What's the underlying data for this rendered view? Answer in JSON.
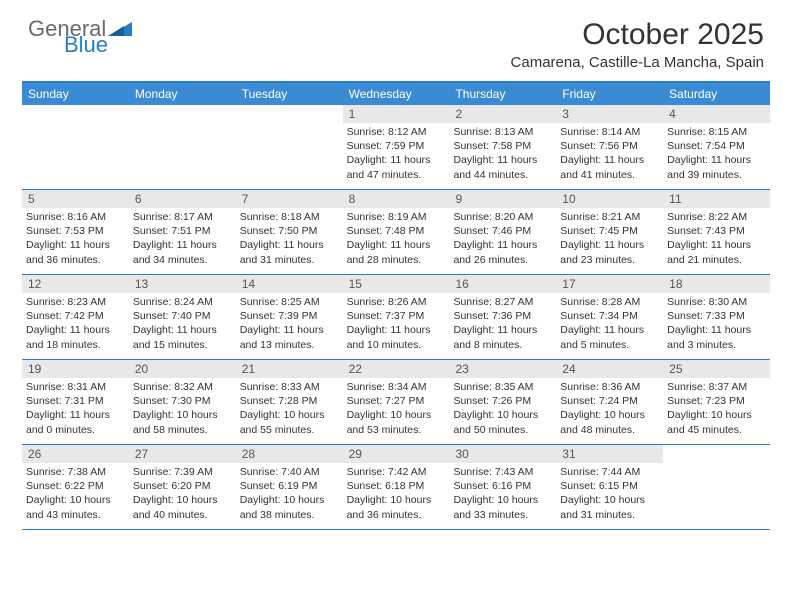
{
  "logo": {
    "text1": "General",
    "text2": "Blue"
  },
  "title": "October 2025",
  "location": "Camarena, Castille-La Mancha, Spain",
  "colors": {
    "header_bg": "#3b8bd4",
    "header_text": "#ffffff",
    "border": "#2a7dc0",
    "daynum_bg": "#e8e8e8",
    "body_text": "#333333",
    "logo_gray": "#6a6a6a",
    "logo_blue": "#2a7dc0"
  },
  "day_headers": [
    "Sunday",
    "Monday",
    "Tuesday",
    "Wednesday",
    "Thursday",
    "Friday",
    "Saturday"
  ],
  "weeks": [
    [
      {
        "n": "",
        "sr": "",
        "ss": "",
        "dl": ""
      },
      {
        "n": "",
        "sr": "",
        "ss": "",
        "dl": ""
      },
      {
        "n": "",
        "sr": "",
        "ss": "",
        "dl": ""
      },
      {
        "n": "1",
        "sr": "Sunrise: 8:12 AM",
        "ss": "Sunset: 7:59 PM",
        "dl": "Daylight: 11 hours and 47 minutes."
      },
      {
        "n": "2",
        "sr": "Sunrise: 8:13 AM",
        "ss": "Sunset: 7:58 PM",
        "dl": "Daylight: 11 hours and 44 minutes."
      },
      {
        "n": "3",
        "sr": "Sunrise: 8:14 AM",
        "ss": "Sunset: 7:56 PM",
        "dl": "Daylight: 11 hours and 41 minutes."
      },
      {
        "n": "4",
        "sr": "Sunrise: 8:15 AM",
        "ss": "Sunset: 7:54 PM",
        "dl": "Daylight: 11 hours and 39 minutes."
      }
    ],
    [
      {
        "n": "5",
        "sr": "Sunrise: 8:16 AM",
        "ss": "Sunset: 7:53 PM",
        "dl": "Daylight: 11 hours and 36 minutes."
      },
      {
        "n": "6",
        "sr": "Sunrise: 8:17 AM",
        "ss": "Sunset: 7:51 PM",
        "dl": "Daylight: 11 hours and 34 minutes."
      },
      {
        "n": "7",
        "sr": "Sunrise: 8:18 AM",
        "ss": "Sunset: 7:50 PM",
        "dl": "Daylight: 11 hours and 31 minutes."
      },
      {
        "n": "8",
        "sr": "Sunrise: 8:19 AM",
        "ss": "Sunset: 7:48 PM",
        "dl": "Daylight: 11 hours and 28 minutes."
      },
      {
        "n": "9",
        "sr": "Sunrise: 8:20 AM",
        "ss": "Sunset: 7:46 PM",
        "dl": "Daylight: 11 hours and 26 minutes."
      },
      {
        "n": "10",
        "sr": "Sunrise: 8:21 AM",
        "ss": "Sunset: 7:45 PM",
        "dl": "Daylight: 11 hours and 23 minutes."
      },
      {
        "n": "11",
        "sr": "Sunrise: 8:22 AM",
        "ss": "Sunset: 7:43 PM",
        "dl": "Daylight: 11 hours and 21 minutes."
      }
    ],
    [
      {
        "n": "12",
        "sr": "Sunrise: 8:23 AM",
        "ss": "Sunset: 7:42 PM",
        "dl": "Daylight: 11 hours and 18 minutes."
      },
      {
        "n": "13",
        "sr": "Sunrise: 8:24 AM",
        "ss": "Sunset: 7:40 PM",
        "dl": "Daylight: 11 hours and 15 minutes."
      },
      {
        "n": "14",
        "sr": "Sunrise: 8:25 AM",
        "ss": "Sunset: 7:39 PM",
        "dl": "Daylight: 11 hours and 13 minutes."
      },
      {
        "n": "15",
        "sr": "Sunrise: 8:26 AM",
        "ss": "Sunset: 7:37 PM",
        "dl": "Daylight: 11 hours and 10 minutes."
      },
      {
        "n": "16",
        "sr": "Sunrise: 8:27 AM",
        "ss": "Sunset: 7:36 PM",
        "dl": "Daylight: 11 hours and 8 minutes."
      },
      {
        "n": "17",
        "sr": "Sunrise: 8:28 AM",
        "ss": "Sunset: 7:34 PM",
        "dl": "Daylight: 11 hours and 5 minutes."
      },
      {
        "n": "18",
        "sr": "Sunrise: 8:30 AM",
        "ss": "Sunset: 7:33 PM",
        "dl": "Daylight: 11 hours and 3 minutes."
      }
    ],
    [
      {
        "n": "19",
        "sr": "Sunrise: 8:31 AM",
        "ss": "Sunset: 7:31 PM",
        "dl": "Daylight: 11 hours and 0 minutes."
      },
      {
        "n": "20",
        "sr": "Sunrise: 8:32 AM",
        "ss": "Sunset: 7:30 PM",
        "dl": "Daylight: 10 hours and 58 minutes."
      },
      {
        "n": "21",
        "sr": "Sunrise: 8:33 AM",
        "ss": "Sunset: 7:28 PM",
        "dl": "Daylight: 10 hours and 55 minutes."
      },
      {
        "n": "22",
        "sr": "Sunrise: 8:34 AM",
        "ss": "Sunset: 7:27 PM",
        "dl": "Daylight: 10 hours and 53 minutes."
      },
      {
        "n": "23",
        "sr": "Sunrise: 8:35 AM",
        "ss": "Sunset: 7:26 PM",
        "dl": "Daylight: 10 hours and 50 minutes."
      },
      {
        "n": "24",
        "sr": "Sunrise: 8:36 AM",
        "ss": "Sunset: 7:24 PM",
        "dl": "Daylight: 10 hours and 48 minutes."
      },
      {
        "n": "25",
        "sr": "Sunrise: 8:37 AM",
        "ss": "Sunset: 7:23 PM",
        "dl": "Daylight: 10 hours and 45 minutes."
      }
    ],
    [
      {
        "n": "26",
        "sr": "Sunrise: 7:38 AM",
        "ss": "Sunset: 6:22 PM",
        "dl": "Daylight: 10 hours and 43 minutes."
      },
      {
        "n": "27",
        "sr": "Sunrise: 7:39 AM",
        "ss": "Sunset: 6:20 PM",
        "dl": "Daylight: 10 hours and 40 minutes."
      },
      {
        "n": "28",
        "sr": "Sunrise: 7:40 AM",
        "ss": "Sunset: 6:19 PM",
        "dl": "Daylight: 10 hours and 38 minutes."
      },
      {
        "n": "29",
        "sr": "Sunrise: 7:42 AM",
        "ss": "Sunset: 6:18 PM",
        "dl": "Daylight: 10 hours and 36 minutes."
      },
      {
        "n": "30",
        "sr": "Sunrise: 7:43 AM",
        "ss": "Sunset: 6:16 PM",
        "dl": "Daylight: 10 hours and 33 minutes."
      },
      {
        "n": "31",
        "sr": "Sunrise: 7:44 AM",
        "ss": "Sunset: 6:15 PM",
        "dl": "Daylight: 10 hours and 31 minutes."
      },
      {
        "n": "",
        "sr": "",
        "ss": "",
        "dl": ""
      }
    ]
  ]
}
